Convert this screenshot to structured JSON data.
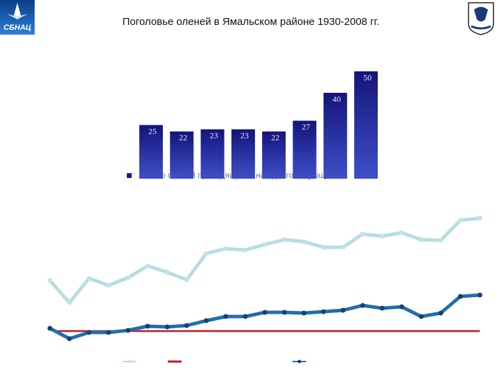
{
  "title": "Поголовье оленей в Ямальском районе 1930-2008 гг.",
  "logo_text": "СБНАЦ",
  "chart_data": [
    {
      "type": "bar",
      "values": [
        25,
        22,
        23,
        23,
        22,
        27,
        40,
        50
      ],
      "color": "#1a1a8c",
      "legend": "Число оленей приходящихся на одного кочующего"
    },
    {
      "type": "line",
      "series": [
        {
          "color": "#b7dde0",
          "values": [
            47.5,
            31.5,
            49,
            44,
            49.5,
            58,
            53.5,
            48,
            67,
            70.5,
            69.5,
            73.5,
            77,
            75.5,
            71.5,
            71.5,
            81,
            79.5,
            82,
            77,
            76.5,
            91,
            92.5
          ]
        },
        {
          "color": "#c0141c",
          "values": [
            11,
            11,
            11,
            11,
            11,
            11,
            11,
            11,
            11,
            11,
            11,
            11,
            11,
            11,
            11,
            11,
            11,
            11,
            11,
            11,
            11,
            11,
            11
          ]
        },
        {
          "color": "#1f6fae",
          "values": [
            13,
            5.5,
            10,
            10,
            11.5,
            14.5,
            14,
            15,
            18.5,
            21.5,
            21.5,
            24.5,
            24.5,
            24,
            25,
            26,
            29.5,
            27.5,
            28.5,
            21.5,
            24,
            36,
            37
          ]
        }
      ]
    }
  ]
}
